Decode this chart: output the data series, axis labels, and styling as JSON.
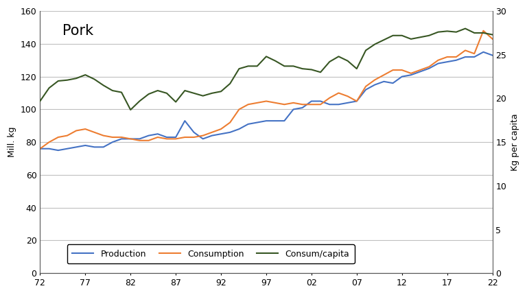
{
  "title": "Pork",
  "ylabel_left": "Mill. kg",
  "ylabel_right": "Kg per capita",
  "ylim_left": [
    0,
    160
  ],
  "ylim_right": [
    0,
    30
  ],
  "yticks_left": [
    0,
    20,
    40,
    60,
    80,
    100,
    120,
    140,
    160
  ],
  "yticks_right": [
    0,
    5,
    10,
    15,
    20,
    25,
    30
  ],
  "xticklabels": [
    "72",
    "77",
    "82",
    "87",
    "92",
    "97",
    "02",
    "07",
    "12",
    "17",
    "22"
  ],
  "production_color": "#4472c4",
  "consumption_color": "#ed7d31",
  "capita_color": "#375623",
  "background_color": "#ffffff",
  "grid_color": "#bfbfbf",
  "production": [
    76,
    76,
    75,
    76,
    77,
    78,
    77,
    77,
    80,
    82,
    82,
    82,
    84,
    85,
    83,
    83,
    93,
    86,
    82,
    84,
    85,
    86,
    88,
    91,
    92,
    93,
    93,
    93,
    100,
    101,
    105,
    105,
    103,
    103,
    104,
    105,
    112,
    115,
    117,
    116,
    120,
    121,
    123,
    125,
    128,
    129,
    130,
    132,
    132,
    135,
    133
  ],
  "consumption": [
    76,
    80,
    83,
    84,
    87,
    88,
    86,
    84,
    83,
    83,
    82,
    81,
    81,
    83,
    82,
    82,
    83,
    83,
    84,
    86,
    88,
    92,
    100,
    103,
    104,
    105,
    104,
    103,
    104,
    103,
    103,
    103,
    107,
    110,
    108,
    105,
    114,
    118,
    121,
    124,
    124,
    122,
    124,
    126,
    130,
    132,
    132,
    136,
    134,
    148,
    143
  ],
  "capita": [
    19.7,
    21.2,
    22.0,
    22.1,
    22.3,
    22.7,
    22.2,
    21.5,
    20.9,
    20.7,
    18.7,
    19.7,
    20.5,
    20.9,
    20.6,
    19.6,
    20.9,
    20.6,
    20.3,
    20.6,
    20.8,
    21.7,
    23.4,
    23.7,
    23.7,
    24.8,
    24.3,
    23.7,
    23.7,
    23.4,
    23.3,
    23.0,
    24.2,
    24.8,
    24.3,
    23.4,
    25.5,
    26.2,
    26.7,
    27.2,
    27.2,
    26.8,
    27.0,
    27.2,
    27.6,
    27.7,
    27.6,
    28.0,
    27.5,
    27.5,
    27.3
  ]
}
